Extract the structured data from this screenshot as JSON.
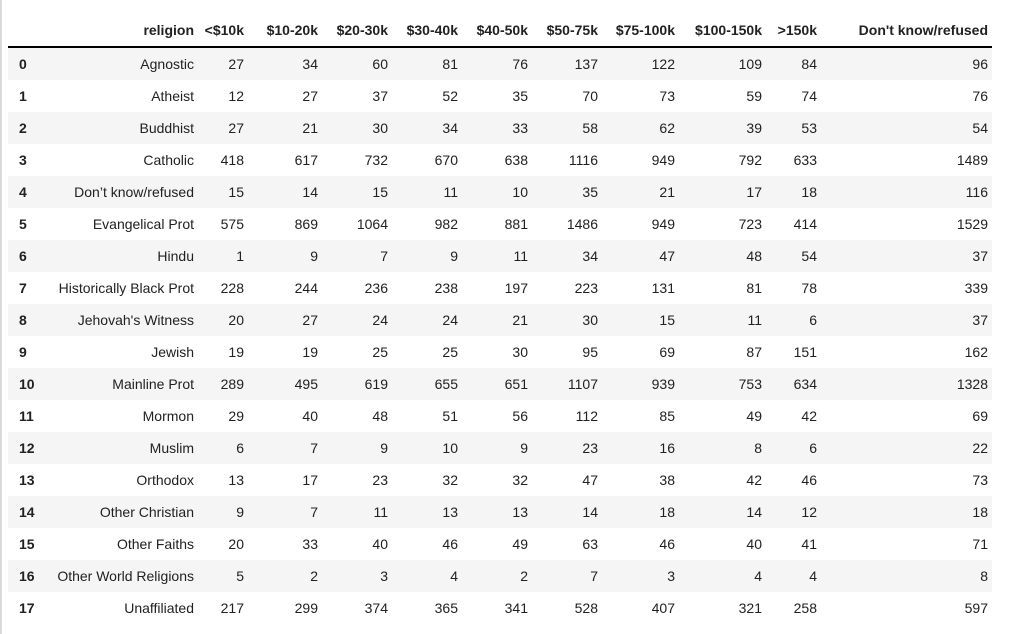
{
  "table": {
    "index_header": "",
    "columns": [
      "religion",
      "<$10k",
      "$10-20k",
      "$20-30k",
      "$30-40k",
      "$40-50k",
      "$50-75k",
      "$75-100k",
      "$100-150k",
      ">150k",
      "Don't know/refused"
    ],
    "rows": [
      {
        "index": "0",
        "religion": "Agnostic",
        "values": [
          "27",
          "34",
          "60",
          "81",
          "76",
          "137",
          "122",
          "109",
          "84",
          "96"
        ]
      },
      {
        "index": "1",
        "religion": "Atheist",
        "values": [
          "12",
          "27",
          "37",
          "52",
          "35",
          "70",
          "73",
          "59",
          "74",
          "76"
        ]
      },
      {
        "index": "2",
        "religion": "Buddhist",
        "values": [
          "27",
          "21",
          "30",
          "34",
          "33",
          "58",
          "62",
          "39",
          "53",
          "54"
        ]
      },
      {
        "index": "3",
        "religion": "Catholic",
        "values": [
          "418",
          "617",
          "732",
          "670",
          "638",
          "1116",
          "949",
          "792",
          "633",
          "1489"
        ]
      },
      {
        "index": "4",
        "religion": "Don’t know/refused",
        "values": [
          "15",
          "14",
          "15",
          "11",
          "10",
          "35",
          "21",
          "17",
          "18",
          "116"
        ]
      },
      {
        "index": "5",
        "religion": "Evangelical Prot",
        "values": [
          "575",
          "869",
          "1064",
          "982",
          "881",
          "1486",
          "949",
          "723",
          "414",
          "1529"
        ]
      },
      {
        "index": "6",
        "religion": "Hindu",
        "values": [
          "1",
          "9",
          "7",
          "9",
          "11",
          "34",
          "47",
          "48",
          "54",
          "37"
        ]
      },
      {
        "index": "7",
        "religion": "Historically Black Prot",
        "values": [
          "228",
          "244",
          "236",
          "238",
          "197",
          "223",
          "131",
          "81",
          "78",
          "339"
        ]
      },
      {
        "index": "8",
        "religion": "Jehovah's Witness",
        "values": [
          "20",
          "27",
          "24",
          "24",
          "21",
          "30",
          "15",
          "11",
          "6",
          "37"
        ]
      },
      {
        "index": "9",
        "religion": "Jewish",
        "values": [
          "19",
          "19",
          "25",
          "25",
          "30",
          "95",
          "69",
          "87",
          "151",
          "162"
        ]
      },
      {
        "index": "10",
        "religion": "Mainline Prot",
        "values": [
          "289",
          "495",
          "619",
          "655",
          "651",
          "1107",
          "939",
          "753",
          "634",
          "1328"
        ]
      },
      {
        "index": "11",
        "religion": "Mormon",
        "values": [
          "29",
          "40",
          "48",
          "51",
          "56",
          "112",
          "85",
          "49",
          "42",
          "69"
        ]
      },
      {
        "index": "12",
        "religion": "Muslim",
        "values": [
          "6",
          "7",
          "9",
          "10",
          "9",
          "23",
          "16",
          "8",
          "6",
          "22"
        ]
      },
      {
        "index": "13",
        "religion": "Orthodox",
        "values": [
          "13",
          "17",
          "23",
          "32",
          "32",
          "47",
          "38",
          "42",
          "46",
          "73"
        ]
      },
      {
        "index": "14",
        "religion": "Other Christian",
        "values": [
          "9",
          "7",
          "11",
          "13",
          "13",
          "14",
          "18",
          "14",
          "12",
          "18"
        ]
      },
      {
        "index": "15",
        "religion": "Other Faiths",
        "values": [
          "20",
          "33",
          "40",
          "46",
          "49",
          "63",
          "46",
          "40",
          "41",
          "71"
        ]
      },
      {
        "index": "16",
        "religion": "Other World Religions",
        "values": [
          "5",
          "2",
          "3",
          "4",
          "2",
          "7",
          "3",
          "4",
          "4",
          "8"
        ]
      },
      {
        "index": "17",
        "religion": "Unaffiliated",
        "values": [
          "217",
          "299",
          "374",
          "365",
          "341",
          "528",
          "407",
          "321",
          "258",
          "597"
        ]
      }
    ]
  },
  "colors": {
    "stripe": "#f5f5f5",
    "header_underline": "#000000",
    "text": "#212121",
    "left_edge_border": "#d9d9d9",
    "background": "#ffffff"
  }
}
